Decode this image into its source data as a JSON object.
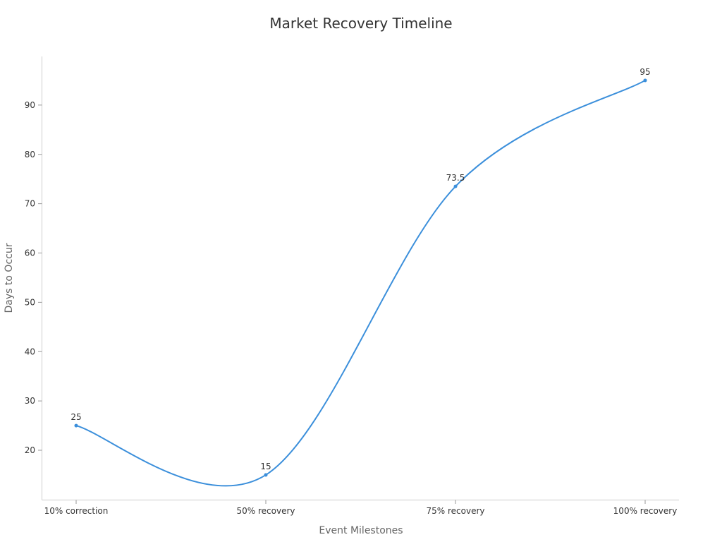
{
  "chart_data": {
    "type": "line",
    "title": "Market Recovery Timeline",
    "xlabel": "Event Milestones",
    "ylabel": "Days to Occur",
    "categories": [
      "10% correction",
      "50% recovery",
      "75% recovery",
      "100% recovery"
    ],
    "series": [
      {
        "values": [
          25,
          15,
          73.5,
          95
        ],
        "color": "#3b8fdb",
        "data_labels": [
          "25",
          "15",
          "73.5",
          "95"
        ]
      }
    ],
    "ylim": [
      10,
      99
    ],
    "yticks": [
      20,
      30,
      40,
      50,
      60,
      70,
      80,
      90
    ],
    "ytick_labels": [
      "20",
      "30",
      "40",
      "50",
      "60",
      "70",
      "80",
      "90"
    ],
    "grid": false,
    "legend": "none",
    "curve": "smooth"
  }
}
